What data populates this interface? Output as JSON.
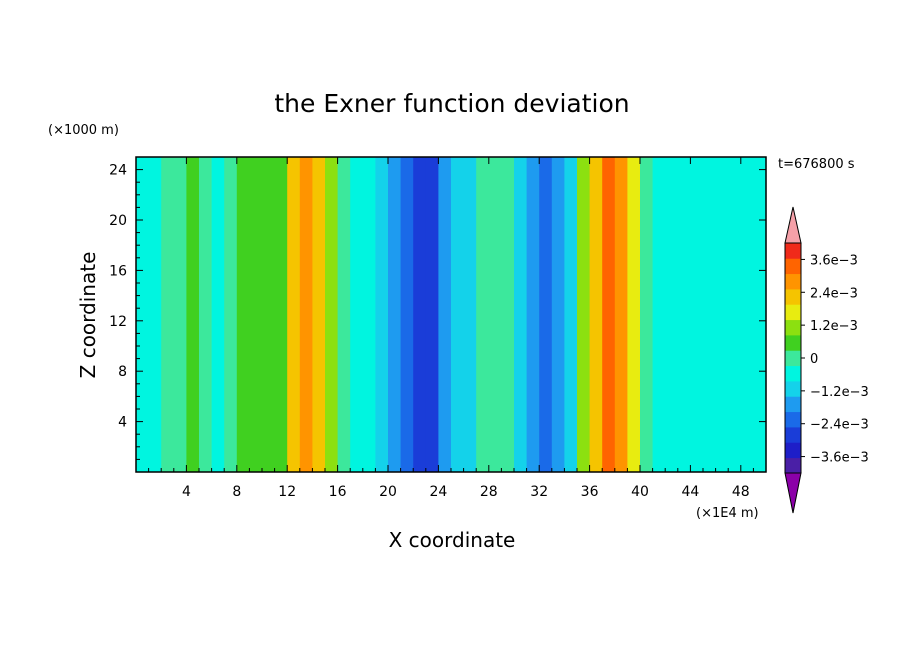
{
  "chart_data": {
    "type": "heatmap",
    "subtype": "filled-contour",
    "title": "the Exner function deviation",
    "xlabel": "X coordinate",
    "ylabel": "Z coordinate",
    "x_unit": "(×1E4 m)",
    "y_unit": "(×1000 m)",
    "time_label": "t=676800 s",
    "xlim": [
      0,
      50
    ],
    "ylim": [
      0,
      25
    ],
    "x_ticks": [
      "4",
      "8",
      "12",
      "16",
      "20",
      "24",
      "28",
      "32",
      "36",
      "40",
      "44",
      "48"
    ],
    "y_ticks": [
      "4",
      "8",
      "12",
      "16",
      "20",
      "24"
    ],
    "x_tick_values": [
      4,
      8,
      12,
      16,
      20,
      24,
      28,
      32,
      36,
      40,
      44,
      48
    ],
    "y_tick_values": [
      4,
      8,
      12,
      16,
      20,
      24
    ],
    "colorbar": {
      "levels": [
        -0.0042,
        -0.0036,
        -0.003,
        -0.0024,
        -0.0018,
        -0.0012,
        -0.0006,
        0,
        0.0006,
        0.0012,
        0.0018,
        0.0024,
        0.003,
        0.0036,
        0.0042
      ],
      "labels": [
        "3.6e−3",
        "2.4e−3",
        "1.2e−3",
        "0",
        "−1.2e−3",
        "−2.4e−3",
        "−3.6e−3"
      ],
      "label_values": [
        0.0036,
        0.0024,
        0.0012,
        0,
        -0.0012,
        -0.0024,
        -0.0036
      ],
      "colors": [
        "#8b00a8",
        "#4a1fa6",
        "#1e1ec8",
        "#1a3dd8",
        "#1a6ae8",
        "#1e9bf0",
        "#14d2ea",
        "#00f5e0",
        "#3ce89c",
        "#40d020",
        "#8ce010",
        "#e8ec10",
        "#f5c400",
        "#ff9400",
        "#ff6400",
        "#f02a1a",
        "#f5a0a8"
      ],
      "extend": "both"
    },
    "columns": {
      "x": [
        0.5,
        1.5,
        2.5,
        3.5,
        4.5,
        5.5,
        6.5,
        7.5,
        8.5,
        9.5,
        10.5,
        11.5,
        12.5,
        13.5,
        14.5,
        15.5,
        16.5,
        17.5,
        18.5,
        19.5,
        20.5,
        21.5,
        22.5,
        23.5,
        24.5,
        25.5,
        26.5,
        27.5,
        28.5,
        29.5,
        30.5,
        31.5,
        32.5,
        33.5,
        34.5,
        35.5,
        36.5,
        37.5,
        38.5,
        39.5,
        40.5,
        41.5,
        42.5,
        43.5,
        44.5,
        45.5,
        46.5,
        47.5,
        48.5,
        49.5
      ],
      "value": [
        -0.0004,
        -0.0001,
        0.0001,
        0.0004,
        0.0006,
        0.0003,
        -0.0002,
        0.0002,
        0.0007,
        0.0009,
        0.001,
        0.0006,
        0.0026,
        0.0034,
        0.0027,
        0.0012,
        0.0003,
        -0.0001,
        -0.0002,
        -0.0008,
        -0.0014,
        -0.002,
        -0.0028,
        -0.0025,
        -0.0016,
        -0.0011,
        -0.0008,
        0.0001,
        0.0004,
        0.0002,
        -0.0008,
        -0.0016,
        -0.002,
        -0.0016,
        -0.0012,
        0.0012,
        0.0026,
        0.0036,
        0.0034,
        0.0018,
        0.0004,
        -0.0002,
        -0.0005,
        -0.0004,
        -0.0006,
        -0.0005,
        -0.0004,
        -0.0005,
        -0.0004,
        -0.0004
      ]
    }
  }
}
